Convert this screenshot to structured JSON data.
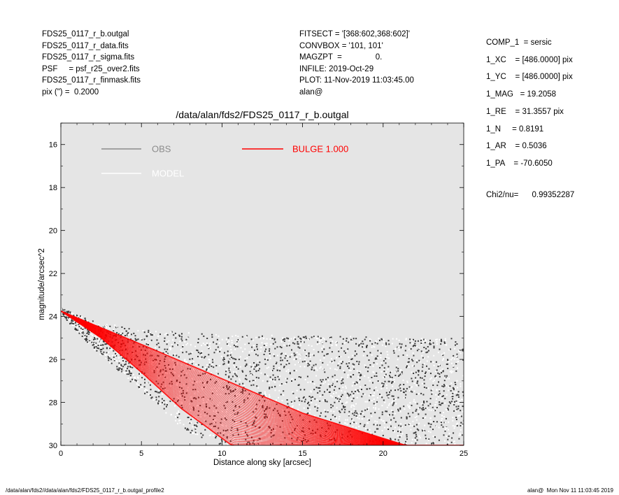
{
  "header": {
    "left": [
      "FDS25_0117_r_b.outgal",
      "FDS25_0117_r_data.fits",
      "FDS25_0117_r_sigma.fits",
      "PSF     = psf_r25_over2.fits",
      "FDS25_0117_r_finmask.fits",
      "pix (\") =  0.2000"
    ],
    "middle": [
      "FITSECT = '[368:602,368:602]'",
      "CONVBOX = '101, 101'",
      "MAGZPT  =               0.",
      "INFILE: 2019-Oct-29",
      "PLOT: 11-Nov-2019 11:03:45.00",
      "alan@"
    ],
    "right": [
      "COMP_1  = sersic",
      "1_XC    = [486.0000] pix",
      "1_YC    = [486.0000] pix",
      "1_MAG   = 19.2058",
      "1_RE    = 31.3557 pix",
      "1_N     = 0.8191",
      "1_AR    = 0.5036",
      "1_PA    = -70.6050"
    ],
    "chi2": "Chi2/nu=      0.99352287"
  },
  "footer": {
    "left": "/data/alan/fds2//data/alan/fds2/FDS25_0117_r_b.outgal_profile2",
    "right": "alan@  Mon Nov 11 11:03:45 2019"
  },
  "colors": {
    "plot_background": "#e5e5e5",
    "obs": "#8c8c8c",
    "obs_points": "#3a3a3a",
    "model": "#ffffff",
    "bulge": "#ff0000"
  },
  "chart_data": {
    "type": "scatter",
    "title": "/data/alan/fds2/FDS25_0117_r_b.outgal",
    "xlabel": "Distance along sky [arcsec]",
    "ylabel": "magnitude/arcsec^2",
    "xlim": [
      0,
      25
    ],
    "ylim": [
      30,
      15
    ],
    "y_inverted": true,
    "xticks": [
      0,
      5,
      10,
      15,
      20,
      25
    ],
    "yticks": [
      16,
      18,
      20,
      22,
      24,
      26,
      28,
      30
    ],
    "grid": false,
    "legend": [
      {
        "label": "OBS",
        "style": "line",
        "color": "#8c8c8c"
      },
      {
        "label": "MODEL",
        "style": "line",
        "color": "#ffffff"
      },
      {
        "label": "BULGE  1.000",
        "style": "line",
        "color": "#ff0000"
      }
    ],
    "series": [
      {
        "name": "OBS",
        "kind": "points",
        "description_points": "noisy data: starts near 23.7 at x=0, spreads downward; faint limit ~24.8 beyond x~8",
        "x_range": [
          0,
          25
        ],
        "bright_envelope": [
          [
            0,
            23.6
          ],
          [
            2,
            24.2
          ],
          [
            5,
            24.6
          ],
          [
            10,
            24.8
          ],
          [
            25,
            25.0
          ]
        ],
        "faint_envelope": [
          [
            0,
            23.9
          ],
          [
            2,
            25.5
          ],
          [
            5,
            27.5
          ],
          [
            8,
            29.5
          ],
          [
            10,
            30.0
          ],
          [
            25,
            30.0
          ]
        ]
      },
      {
        "name": "BULGE  1.000",
        "kind": "fan",
        "upper_edge": [
          [
            0,
            23.75
          ],
          [
            5,
            25.3
          ],
          [
            10,
            26.9
          ],
          [
            15,
            28.5
          ],
          [
            21.4,
            30.0
          ]
        ],
        "lower_edge": [
          [
            0,
            23.75
          ],
          [
            2.5,
            25.0
          ],
          [
            5,
            26.6
          ],
          [
            7.5,
            28.3
          ],
          [
            10.6,
            30.0
          ]
        ]
      }
    ]
  }
}
